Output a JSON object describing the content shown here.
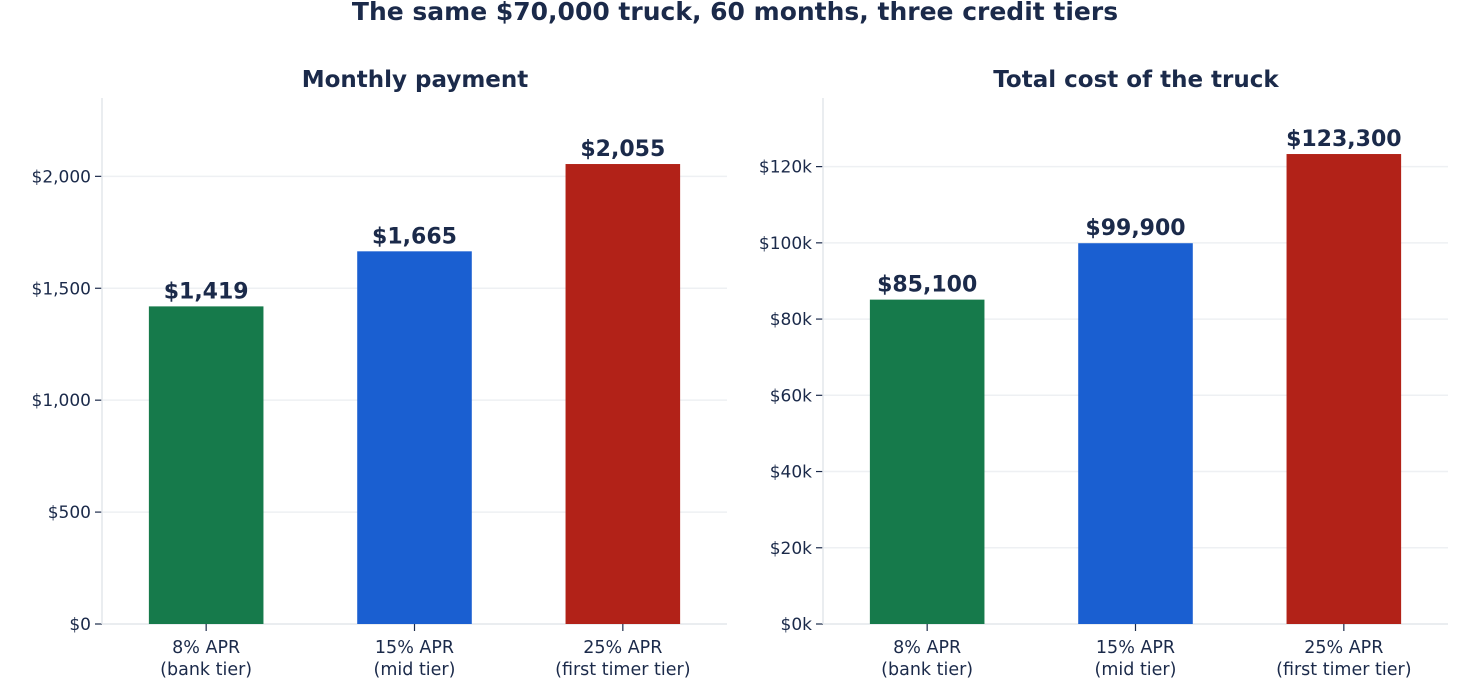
{
  "figure": {
    "title": "The same $70,000 truck, 60 months, three credit tiers"
  },
  "chart_data": [
    {
      "type": "bar",
      "title": "Monthly payment",
      "xlabel": "",
      "ylabel": "",
      "categories": [
        [
          "8% APR",
          "(bank tier)"
        ],
        [
          "15% APR",
          "(mid tier)"
        ],
        [
          "25% APR",
          "(first timer tier)"
        ]
      ],
      "values": [
        1419,
        1665,
        2055
      ],
      "value_labels": [
        "$1,419",
        "$1,665",
        "$2,055"
      ],
      "colors": [
        "#167a4b",
        "#1a5fd1",
        "#b22218"
      ],
      "ylim": [
        0,
        2350
      ],
      "yticks": [
        0,
        500,
        1000,
        1500,
        2000
      ],
      "ytick_labels": [
        "$0",
        "$500",
        "$1,000",
        "$1,500",
        "$2,000"
      ],
      "grid": "horizontal",
      "legend": "none"
    },
    {
      "type": "bar",
      "title": "Total cost of the truck",
      "xlabel": "",
      "ylabel": "",
      "categories": [
        [
          "8% APR",
          "(bank tier)"
        ],
        [
          "15% APR",
          "(mid tier)"
        ],
        [
          "25% APR",
          "(first timer tier)"
        ]
      ],
      "values": [
        85100,
        99900,
        123300
      ],
      "value_labels": [
        "$85,100",
        "$99,900",
        "$123,300"
      ],
      "colors": [
        "#167a4b",
        "#1a5fd1",
        "#b22218"
      ],
      "ylim": [
        0,
        138000
      ],
      "yticks": [
        0,
        20000,
        40000,
        60000,
        80000,
        100000,
        120000
      ],
      "ytick_labels": [
        "$0k",
        "$20k",
        "$40k",
        "$60k",
        "$80k",
        "$100k",
        "$120k"
      ],
      "grid": "horizontal",
      "legend": "none"
    }
  ]
}
